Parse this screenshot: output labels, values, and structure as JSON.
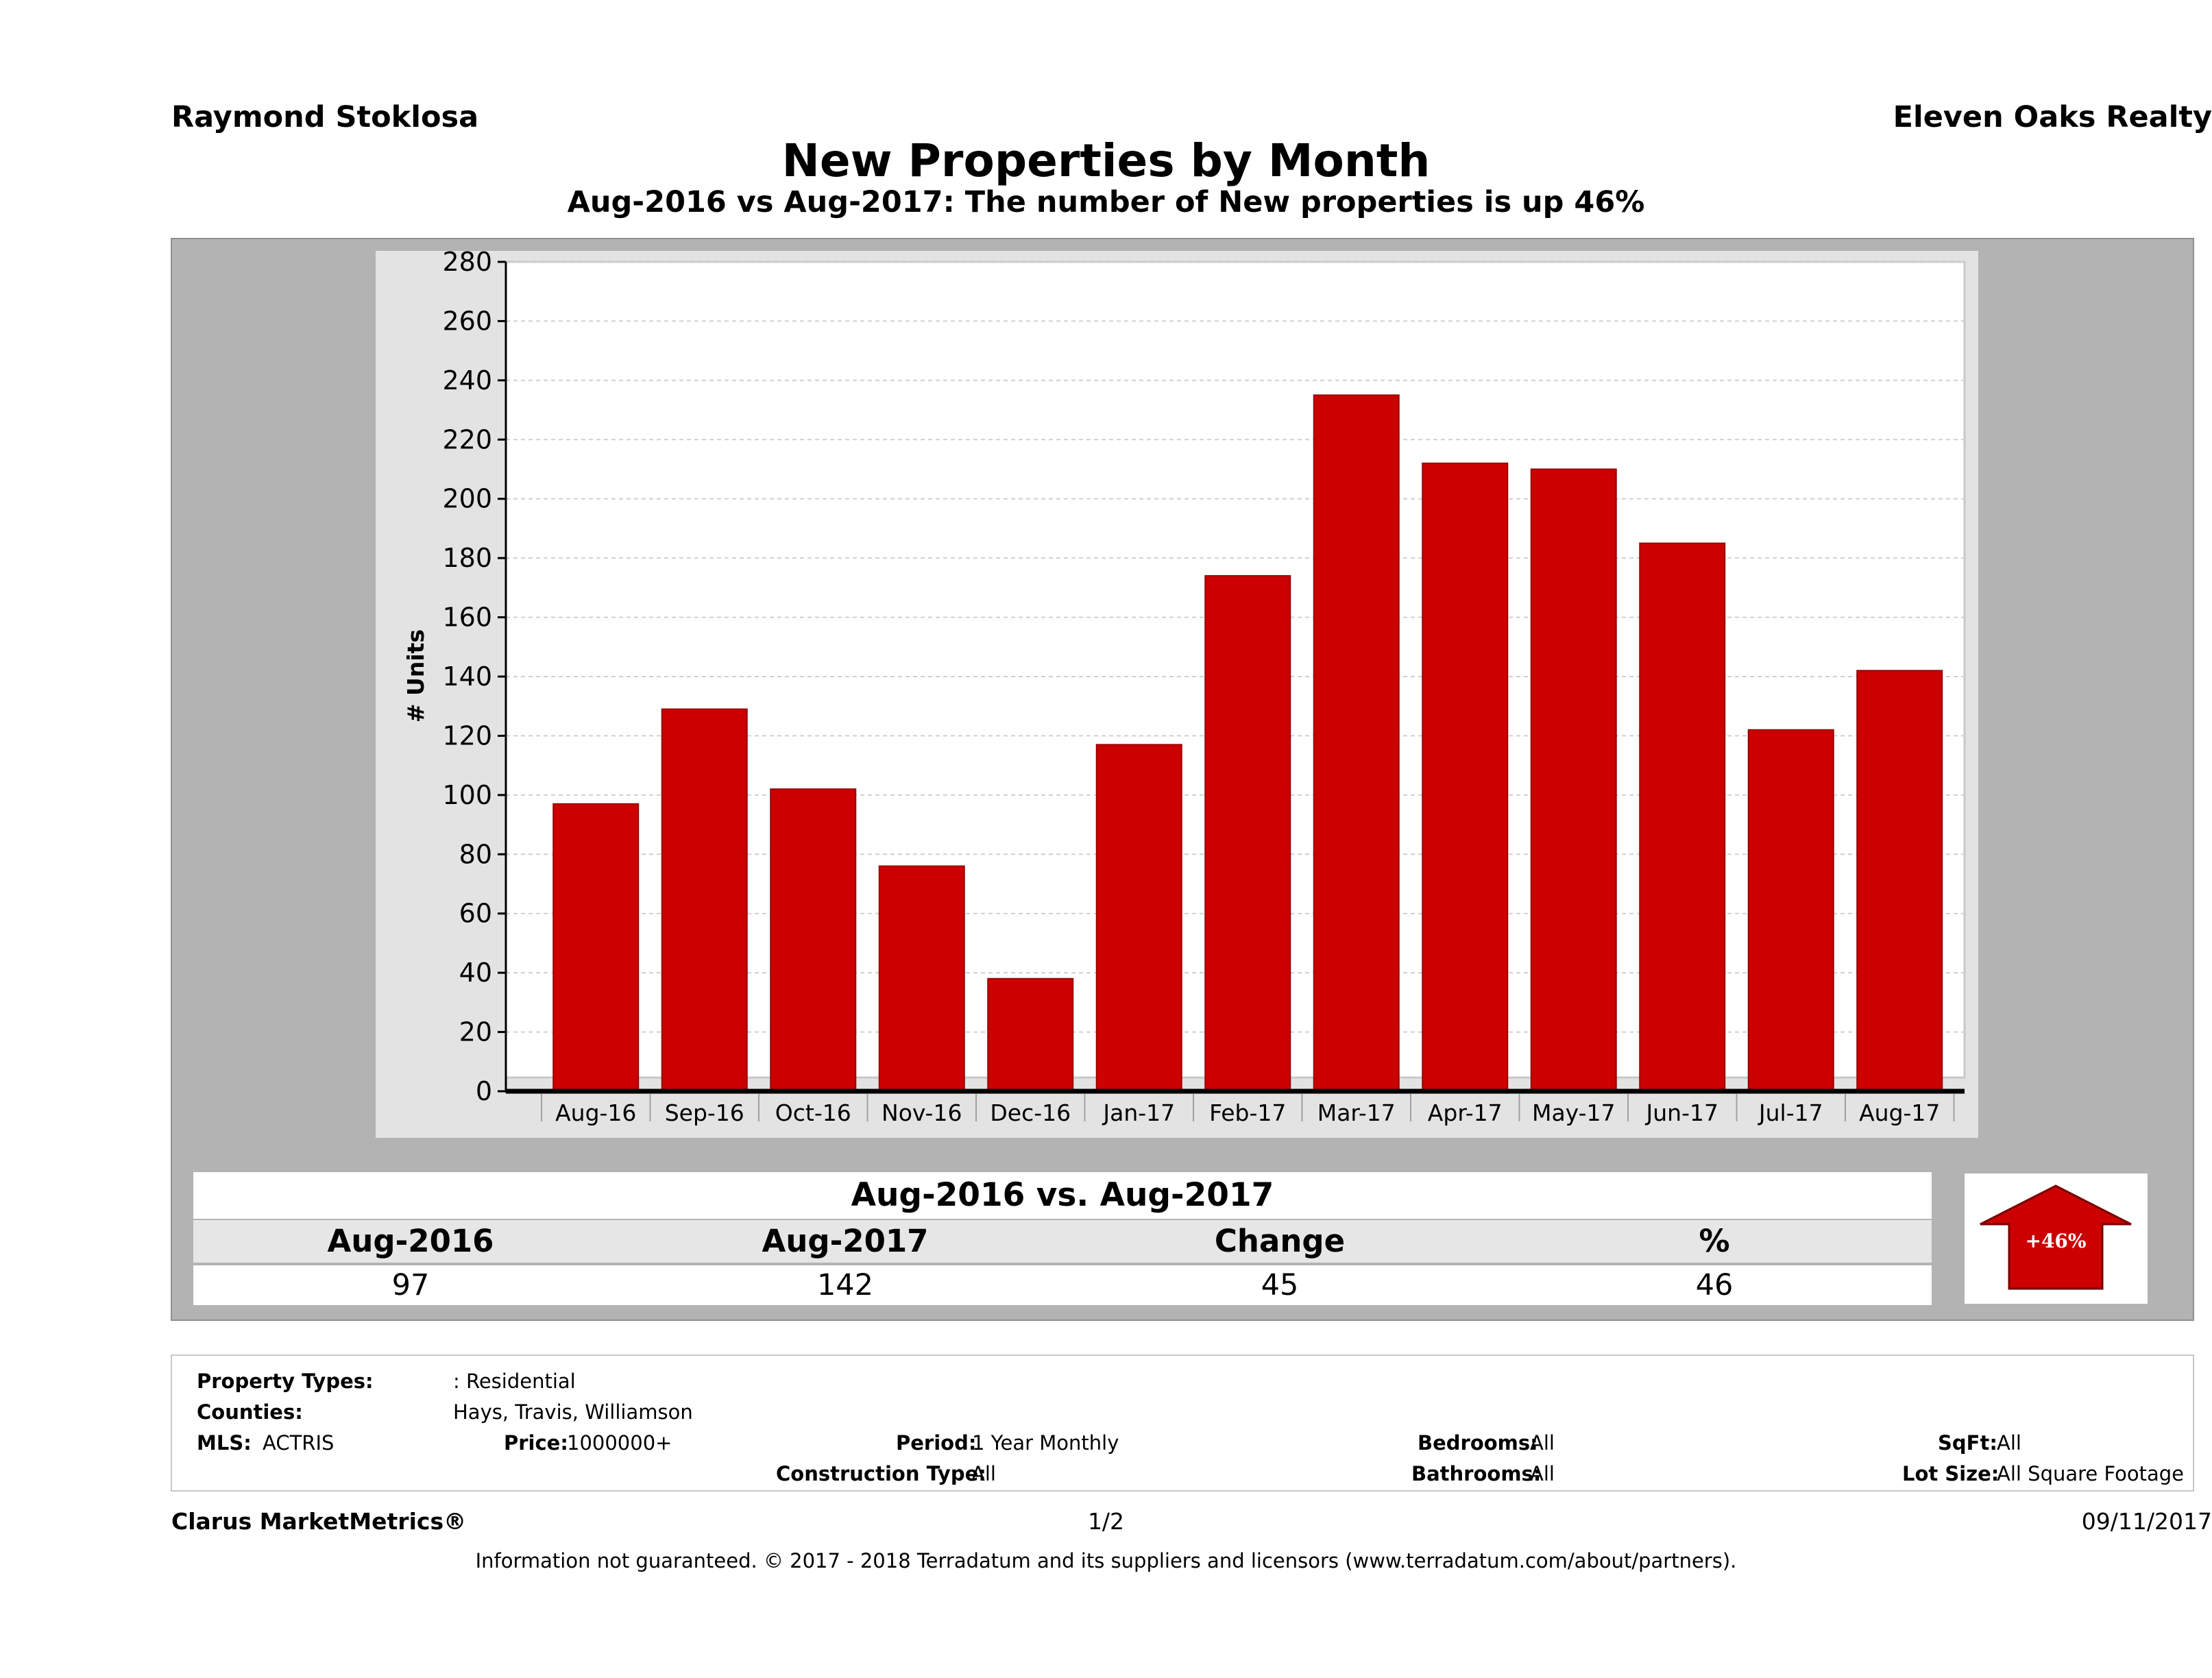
{
  "header": {
    "agent": "Raymond Stoklosa",
    "company": "Eleven Oaks Realty"
  },
  "chart_data": {
    "type": "bar",
    "title": "New Properties by Month",
    "subtitle": "Aug-2016 vs Aug-2017: The number of New  properties is up 46%",
    "xlabel": "",
    "ylabel": "# Units",
    "ylim": [
      0,
      280
    ],
    "yticks": [
      0,
      20,
      40,
      60,
      80,
      100,
      120,
      140,
      160,
      180,
      200,
      220,
      240,
      260,
      280
    ],
    "grid": true,
    "categories": [
      "Aug-16",
      "Sep-16",
      "Oct-16",
      "Nov-16",
      "Dec-16",
      "Jan-17",
      "Feb-17",
      "Mar-17",
      "Apr-17",
      "May-17",
      "Jun-17",
      "Jul-17",
      "Aug-17"
    ],
    "values": [
      97,
      129,
      102,
      76,
      38,
      117,
      174,
      235,
      212,
      210,
      185,
      122,
      142
    ],
    "bar_color": "#cc0000"
  },
  "summary": {
    "caption": "Aug-2016 vs. Aug-2017",
    "headers": [
      "Aug-2016",
      "Aug-2017",
      "Change",
      "%"
    ],
    "values": [
      "97",
      "142",
      "45",
      "46"
    ],
    "badge": "+46%"
  },
  "criteria": {
    "property_types_label": "Property Types:",
    "property_types_value": ": Residential",
    "counties_label": "Counties:",
    "counties_value": "Hays, Travis, Williamson",
    "mls_label": "MLS:",
    "mls_value": "ACTRIS",
    "price_label": "Price:",
    "price_value": "1000000+",
    "period_label": "Period:",
    "period_value": "1 Year Monthly",
    "construction_label": "Construction Type:",
    "construction_value": "All",
    "bedrooms_label": "Bedrooms:",
    "bedrooms_value": "All",
    "bathrooms_label": "Bathrooms:",
    "bathrooms_value": "All",
    "sqft_label": "SqFt:",
    "sqft_value": "All",
    "lotsize_label": "Lot Size:",
    "lotsize_value": "All Square Footage"
  },
  "footer": {
    "brand": "Clarus MarketMetrics®",
    "page": "1/2",
    "date": "09/11/2017",
    "disclaimer": "Information not guaranteed. © 2017 - 2018 Terradatum and its suppliers and licensors (www.terradatum.com/about/partners)."
  }
}
